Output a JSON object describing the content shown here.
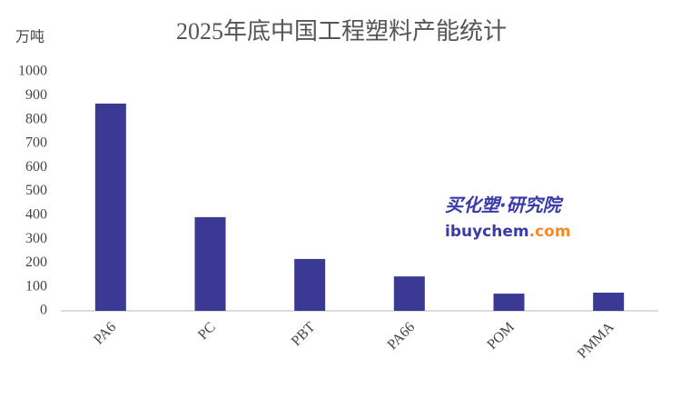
{
  "chart_data": {
    "type": "bar",
    "title": "2025年底中国工程塑料产能统计",
    "y_label": "万吨",
    "categories": [
      "PA6",
      "PC",
      "PBT",
      "PA66",
      "POM",
      "PMMA"
    ],
    "values": [
      867,
      392,
      217,
      144,
      72,
      76
    ],
    "color": "#3a3a94",
    "ylim": [
      0,
      1000
    ],
    "yticks": [
      0,
      100,
      200,
      300,
      400,
      500,
      600,
      700,
      800,
      900,
      1000
    ],
    "grid": false,
    "annotations": [
      "买化塑·研究院",
      "ibuychem",
      ".com"
    ]
  }
}
